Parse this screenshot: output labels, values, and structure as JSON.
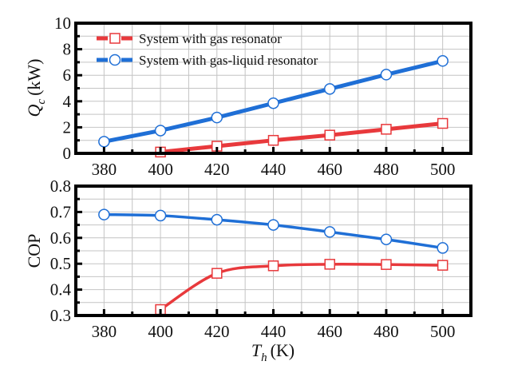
{
  "chart_data": [
    {
      "type": "line",
      "ylabel_main": "Q",
      "ylabel_sub": "c",
      "ylabel_unit": "(kW)",
      "xlabel": "",
      "xlim": [
        370,
        510
      ],
      "ylim": [
        0,
        10
      ],
      "xticks": [
        380,
        400,
        420,
        440,
        460,
        480,
        500
      ],
      "yticks": [
        0,
        2,
        4,
        6,
        8,
        10
      ],
      "grid": true,
      "legend_position": "top-left",
      "series": [
        {
          "name": "System with gas resonator",
          "color": "#e8393c",
          "marker": "square",
          "smooth": false,
          "x": [
            400,
            420,
            440,
            460,
            480,
            500
          ],
          "y": [
            0.1,
            0.55,
            1.0,
            1.4,
            1.85,
            2.3
          ]
        },
        {
          "name": "System with gas-liquid resonator",
          "color": "#1f6fd6",
          "marker": "circle",
          "smooth": false,
          "x": [
            380,
            400,
            420,
            440,
            460,
            480,
            500
          ],
          "y": [
            0.9,
            1.75,
            2.75,
            3.85,
            4.95,
            6.05,
            7.1
          ]
        }
      ]
    },
    {
      "type": "line",
      "ylabel_main": "COP",
      "xlabel_main": "T",
      "xlabel_sub": "h",
      "xlabel_unit": "(K)",
      "xlim": [
        370,
        510
      ],
      "ylim": [
        0.3,
        0.8
      ],
      "xticks": [
        380,
        400,
        420,
        440,
        460,
        480,
        500
      ],
      "yticks": [
        0.3,
        0.4,
        0.5,
        0.6,
        0.7,
        0.8
      ],
      "grid": true,
      "series": [
        {
          "name": "System with gas resonator",
          "color": "#e8393c",
          "marker": "square",
          "smooth": true,
          "x": [
            400,
            420,
            440,
            460,
            480,
            500
          ],
          "y": [
            0.323,
            0.463,
            0.492,
            0.498,
            0.497,
            0.494
          ]
        },
        {
          "name": "System with gas-liquid resonator",
          "color": "#1f6fd6",
          "marker": "circle",
          "smooth": true,
          "x": [
            380,
            400,
            420,
            440,
            460,
            480,
            500
          ],
          "y": [
            0.69,
            0.686,
            0.67,
            0.65,
            0.623,
            0.594,
            0.561
          ]
        }
      ]
    }
  ]
}
